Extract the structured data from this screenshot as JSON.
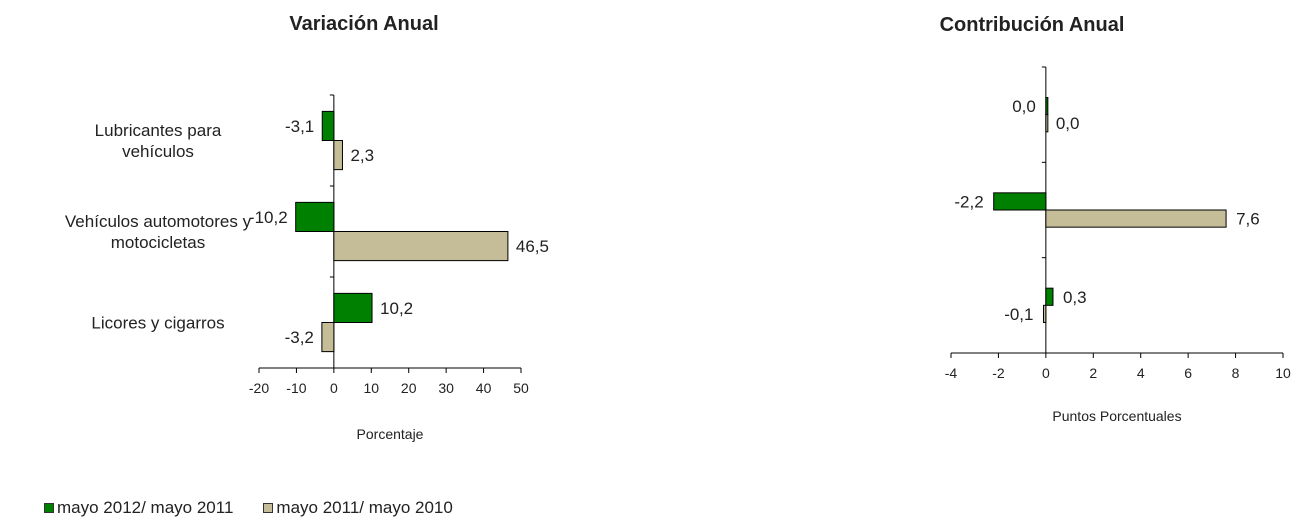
{
  "legend": {
    "items": [
      {
        "label": "mayo 2012/ mayo 2011",
        "color": "#008000"
      },
      {
        "label": "mayo 2011/ mayo 2010",
        "color": "#C4BD97"
      }
    ]
  },
  "chart_data": [
    {
      "type": "bar",
      "orientation": "horizontal",
      "title": "Variación Anual",
      "xlabel": "Porcentaje",
      "ylabel": "",
      "xlim": [
        -20,
        50
      ],
      "xticks": [
        -20,
        -10,
        0,
        10,
        20,
        30,
        40,
        50
      ],
      "grid": false,
      "legend_position": "bottom-left",
      "categories": [
        "Lubricantes para vehículos",
        "Vehículos automotores y motocicletas",
        "Licores y cigarros"
      ],
      "category_lines": [
        [
          "Lubricantes para",
          "vehículos"
        ],
        [
          "Vehículos automotores y",
          "motocicletas"
        ],
        [
          "Licores y cigarros"
        ]
      ],
      "series": [
        {
          "name": "mayo 2012/ mayo 2011",
          "color": "#008000",
          "values": [
            -3.1,
            -10.2,
            10.2
          ],
          "labels": [
            "-3,1",
            "-10,2",
            "10,2"
          ]
        },
        {
          "name": "mayo 2011/ mayo 2010",
          "color": "#C4BD97",
          "values": [
            2.3,
            46.5,
            -3.2
          ],
          "labels": [
            "2,3",
            "46,5",
            "-3,2"
          ]
        }
      ]
    },
    {
      "type": "bar",
      "orientation": "horizontal",
      "title": "Contribución Anual",
      "xlabel": "Puntos Porcentuales",
      "ylabel": "",
      "xlim": [
        -4,
        10
      ],
      "xticks": [
        -4,
        -2,
        0,
        2,
        4,
        6,
        8,
        10
      ],
      "grid": false,
      "categories": [
        "Lubricantes para vehículos",
        "Vehículos automotores y motocicletas",
        "Licores y cigarros"
      ],
      "series": [
        {
          "name": "mayo 2012/ mayo 2011",
          "color": "#008000",
          "values": [
            0.0,
            -2.2,
            0.3
          ],
          "labels": [
            "0,0",
            "-2,2",
            "0,3"
          ]
        },
        {
          "name": "mayo 2011/ mayo 2010",
          "color": "#C4BD97",
          "values": [
            0.0,
            7.6,
            -0.1
          ],
          "labels": [
            "0,0",
            "7,6",
            "-0,1"
          ]
        }
      ]
    }
  ]
}
